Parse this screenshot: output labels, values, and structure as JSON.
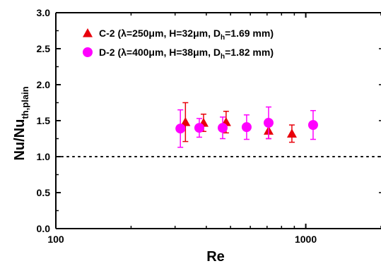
{
  "chart_data": {
    "type": "scatter",
    "xlabel": "Re",
    "ylabel": {
      "main": "Nu/Nu",
      "sub": "th,plain"
    },
    "x_scale": "log",
    "xlim": [
      100,
      2000
    ],
    "ylim": [
      0,
      3.0
    ],
    "x_ticks": [
      100,
      1000
    ],
    "x_tick_labels": [
      "100",
      "1000"
    ],
    "y_ticks": [
      0,
      0.5,
      1.0,
      1.5,
      2.0,
      2.5,
      3.0
    ],
    "y_tick_labels": [
      "0.0",
      "0.5",
      "1.0",
      "1.5",
      "2.0",
      "2.5",
      "3.0"
    ],
    "reference_line": {
      "y": 1.0,
      "style": "dotted"
    },
    "legend_position": "top-left",
    "series": [
      {
        "name": "C-2 (λ=250μm, H=32μm, D",
        "name_sub": "h",
        "name_tail": "=1.69 mm)",
        "marker": "triangle",
        "color": "#e8000b",
        "points": [
          {
            "x": 330,
            "y": 1.48,
            "err": 0.27
          },
          {
            "x": 390,
            "y": 1.47,
            "err": 0.12
          },
          {
            "x": 480,
            "y": 1.48,
            "err": 0.15
          },
          {
            "x": 710,
            "y": 1.36,
            "err": 0.11
          },
          {
            "x": 880,
            "y": 1.32,
            "err": 0.12
          }
        ]
      },
      {
        "name": "D-2 (λ=400μm, H=38μm, D",
        "name_sub": "h",
        "name_tail": "=1.82 mm)",
        "marker": "circle",
        "color": "#ff00ff",
        "points": [
          {
            "x": 315,
            "y": 1.39,
            "err": 0.26
          },
          {
            "x": 375,
            "y": 1.4,
            "err": 0.13
          },
          {
            "x": 465,
            "y": 1.4,
            "err": 0.15
          },
          {
            "x": 580,
            "y": 1.41,
            "err": 0.17
          },
          {
            "x": 710,
            "y": 1.47,
            "err": 0.22
          },
          {
            "x": 1070,
            "y": 1.44,
            "err": 0.2
          }
        ]
      }
    ]
  },
  "colors": {
    "axis": "#000000",
    "series_c2": "#e8000b",
    "series_d2": "#ff00ff"
  }
}
